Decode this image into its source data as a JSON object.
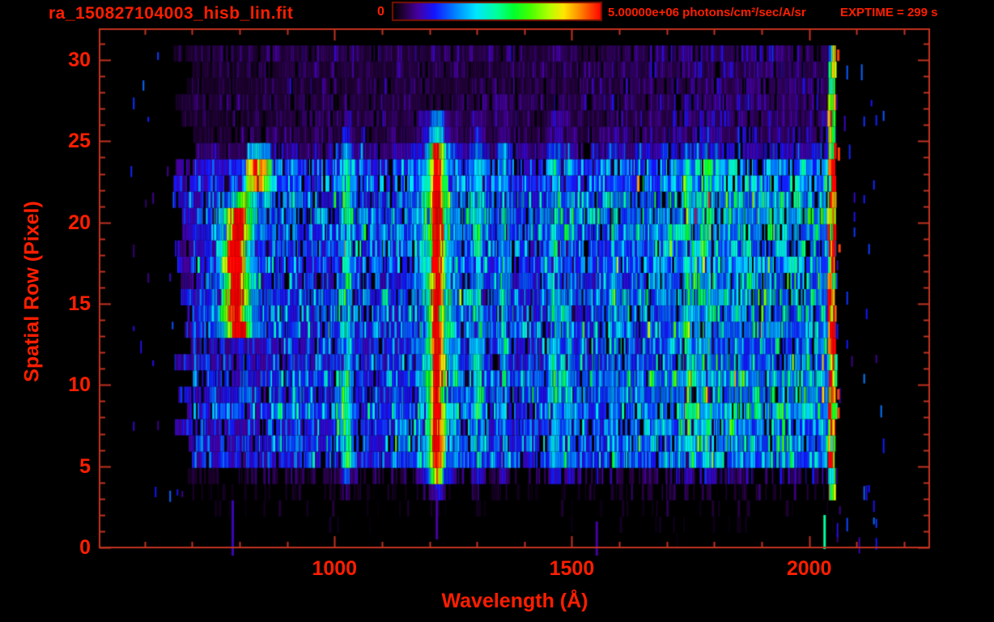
{
  "header": {
    "title": "ra_150827104003_hisb_lin.fit",
    "exptime_label": "EXPTIME = 299 s"
  },
  "colorbar": {
    "min_label": "0",
    "max_label": "5.00000e+06 photons/cm²/sec/A/sr",
    "min_value": 0,
    "max_value": 5000000,
    "units": "photons/cm2/sec/A/sr",
    "border_color": "#7a1200",
    "gradient_stops": [
      {
        "t": 0.0,
        "c": "#000000"
      },
      {
        "t": 0.055,
        "c": "#24003c"
      },
      {
        "t": 0.12,
        "c": "#4600a0"
      },
      {
        "t": 0.2,
        "c": "#1414ff"
      },
      {
        "t": 0.3,
        "c": "#0082ff"
      },
      {
        "t": 0.4,
        "c": "#00e6ff"
      },
      {
        "t": 0.5,
        "c": "#00ff9b"
      },
      {
        "t": 0.58,
        "c": "#00ff2d"
      },
      {
        "t": 0.66,
        "c": "#46ff00"
      },
      {
        "t": 0.75,
        "c": "#b4ff00"
      },
      {
        "t": 0.82,
        "c": "#ffe600"
      },
      {
        "t": 0.89,
        "c": "#ff9100"
      },
      {
        "t": 0.95,
        "c": "#ff4000"
      },
      {
        "t": 1.0,
        "c": "#ff0000"
      }
    ]
  },
  "colors": {
    "frame": "#c23320",
    "text": "#ff1e00",
    "background": "#000000"
  },
  "chart_data": {
    "type": "heatmap",
    "title": "ra_150827104003_hisb_lin.fit",
    "xlabel": "Wavelength (Å)",
    "ylabel": "Spatial Row (Pixel)",
    "xlim": [
      505,
      2253
    ],
    "ylim": [
      0,
      31.9
    ],
    "x_major_ticks": [
      1000,
      1500,
      2000
    ],
    "x_minor_step": 100,
    "y_major_ticks": [
      0,
      5,
      10,
      15,
      20,
      25,
      30
    ],
    "y_minor_step": 1,
    "grid": false,
    "legend": false,
    "colorbar_range": [
      0,
      5000000
    ],
    "exposure_seconds": 299,
    "data_extent": {
      "wavelength_min": 680,
      "wavelength_max": 2056,
      "rows": 31
    },
    "render": {
      "seed": 9,
      "rows": 31,
      "row_base": [
        0.015,
        0.02,
        0.035,
        0.05,
        0.1,
        0.3,
        0.33,
        0.3,
        0.35,
        0.32,
        0.36,
        0.3,
        0.28,
        0.32,
        0.3,
        0.34,
        0.3,
        0.33,
        0.31,
        0.35,
        0.37,
        0.34,
        0.32,
        0.3,
        0.17,
        0.1,
        0.09,
        0.1,
        0.085,
        0.09,
        0.1
      ],
      "row_extra_dropout": {
        "0": 0.92,
        "1": 0.9,
        "2": 0.85,
        "3": 0.72,
        "4": 0.45
      },
      "edge_jitter": 28,
      "bg_profile": {
        "low_end": 700,
        "low_f": 0.62,
        "short_cut": 860,
        "short_f": 0.78,
        "mid_f": 1.0,
        "ramp_start": 1520,
        "ramp_end": 1760,
        "high_f": 1.45
      },
      "lines": [
        {
          "name": "Ly-beta",
          "wavelength": 1026,
          "width": 8,
          "amp": 0.25
        },
        {
          "name": "Ly-alpha-core",
          "wavelength": 1216,
          "width": 9,
          "amp": 0.78
        },
        {
          "name": "Ly-alpha-wings",
          "wavelength": 1216,
          "width": 30,
          "amp": 0.2
        },
        {
          "name": "OI-1304",
          "wavelength": 1304,
          "width": 9,
          "amp": 0.22
        },
        {
          "name": "OI-1356",
          "wavelength": 1356,
          "width": 8,
          "amp": 0.14
        },
        {
          "name": "line-1464",
          "wavelength": 1464,
          "width": 9,
          "amp": 0.17
        },
        {
          "name": "NI-1494",
          "wavelength": 1494,
          "width": 8,
          "amp": 0.11
        },
        {
          "name": "line-1590",
          "wavelength": 1590,
          "width": 8,
          "amp": 0.07
        },
        {
          "name": "line-1744",
          "wavelength": 1744,
          "width": 9,
          "amp": 0.1
        },
        {
          "name": "line-1786",
          "wavelength": 1786,
          "width": 9,
          "amp": 0.12
        }
      ],
      "line_row_taper": {
        "3": 0.15,
        "4": 0.7,
        "25": 0.45,
        "26": 0.3
      },
      "line_full_rows": [
        5,
        24
      ],
      "airglow_blob": {
        "rows": [
          13,
          23
        ],
        "center_wavelength": 793,
        "core_width": 14,
        "core_amp": 0.6,
        "halo_width": 34,
        "halo_amp": 0.28,
        "hot_rows": [
          13,
          20
        ],
        "hot_amp": 0.33,
        "arc_row": 20,
        "arc_shift_per_row": 17,
        "upper_row_factor": 0.55
      },
      "green_streak": {
        "wavelength_range": [
          815,
          868
        ],
        "rows": [
          22,
          24
        ],
        "amp": 0.28
      },
      "cutoff_edge": {
        "wavelength_range": [
          2040,
          2056
        ],
        "amp_base": 0.33,
        "amp_rand": 0.55,
        "min_row": 3
      },
      "right_speckles": {
        "wavelength_range": [
          2058,
          2160
        ],
        "prob": 0.055,
        "amp_min": 0.1,
        "amp_rand": 0.2
      },
      "red_edge_dashes": {
        "wavelength_range": [
          2056,
          2064
        ],
        "prob": 0.16,
        "amp": 0.95
      },
      "left_speckles": {
        "wavelength_range": [
          560,
          678
        ],
        "prob": 0.018,
        "amp_min": 0.08,
        "amp_rand": 0.22
      },
      "bottom_dashes": [
        {
          "wavelength": 783,
          "rows": [
            0,
            2.5
          ],
          "amp": 0.14
        },
        {
          "wavelength": 1213,
          "rows": [
            1,
            3.2
          ],
          "amp": 0.12
        },
        {
          "wavelength": 1550,
          "rows": [
            0,
            1.2
          ],
          "amp": 0.12
        },
        {
          "wavelength": 2030,
          "rows": [
            0.4,
            1.6
          ],
          "amp": 0.5
        }
      ],
      "noise": {
        "dropout": 0.1,
        "base": 0.45,
        "gain": 1.15,
        "spike_prob": 0.04,
        "spike_gain": 1.5,
        "line_noise_min": 0.72,
        "line_noise_rand": 0.6
      }
    }
  }
}
